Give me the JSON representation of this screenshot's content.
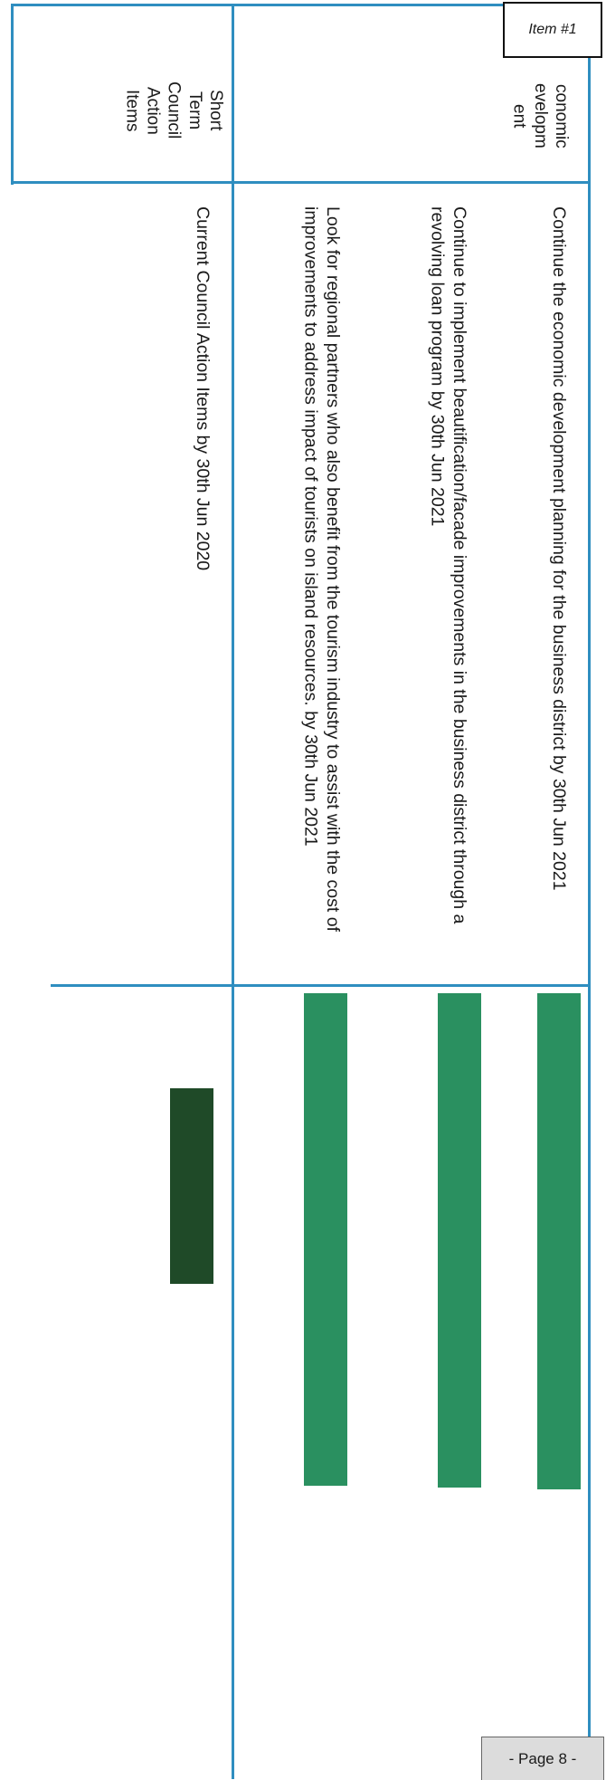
{
  "item_tag": "Item #1",
  "page_footer": "- Page 8 -",
  "categories": [
    {
      "label": "conomic\nevelopm\nent"
    },
    {
      "label": "Short\nTerm\nCouncil\nAction\nItems"
    }
  ],
  "tasks": [
    {
      "text": "Continue the economic development planning for the business district by 30th Jun 2021",
      "bar_color": "#2a9060"
    },
    {
      "text": "Continue to implement beautification/facade improvements in the business district through a revolving loan program by 30th Jun 2021",
      "bar_color": "#2a9060"
    },
    {
      "text": "Look for regional partners who also benefit from the tourism industry to assist with the cost of improvements to address impact of tourists on island resources. by 30th Jun 2021",
      "bar_color": "#2a9060"
    },
    {
      "text": "Current Council Action Items by 30th Jun 2020",
      "bar_color": "#1f4a28"
    }
  ]
}
